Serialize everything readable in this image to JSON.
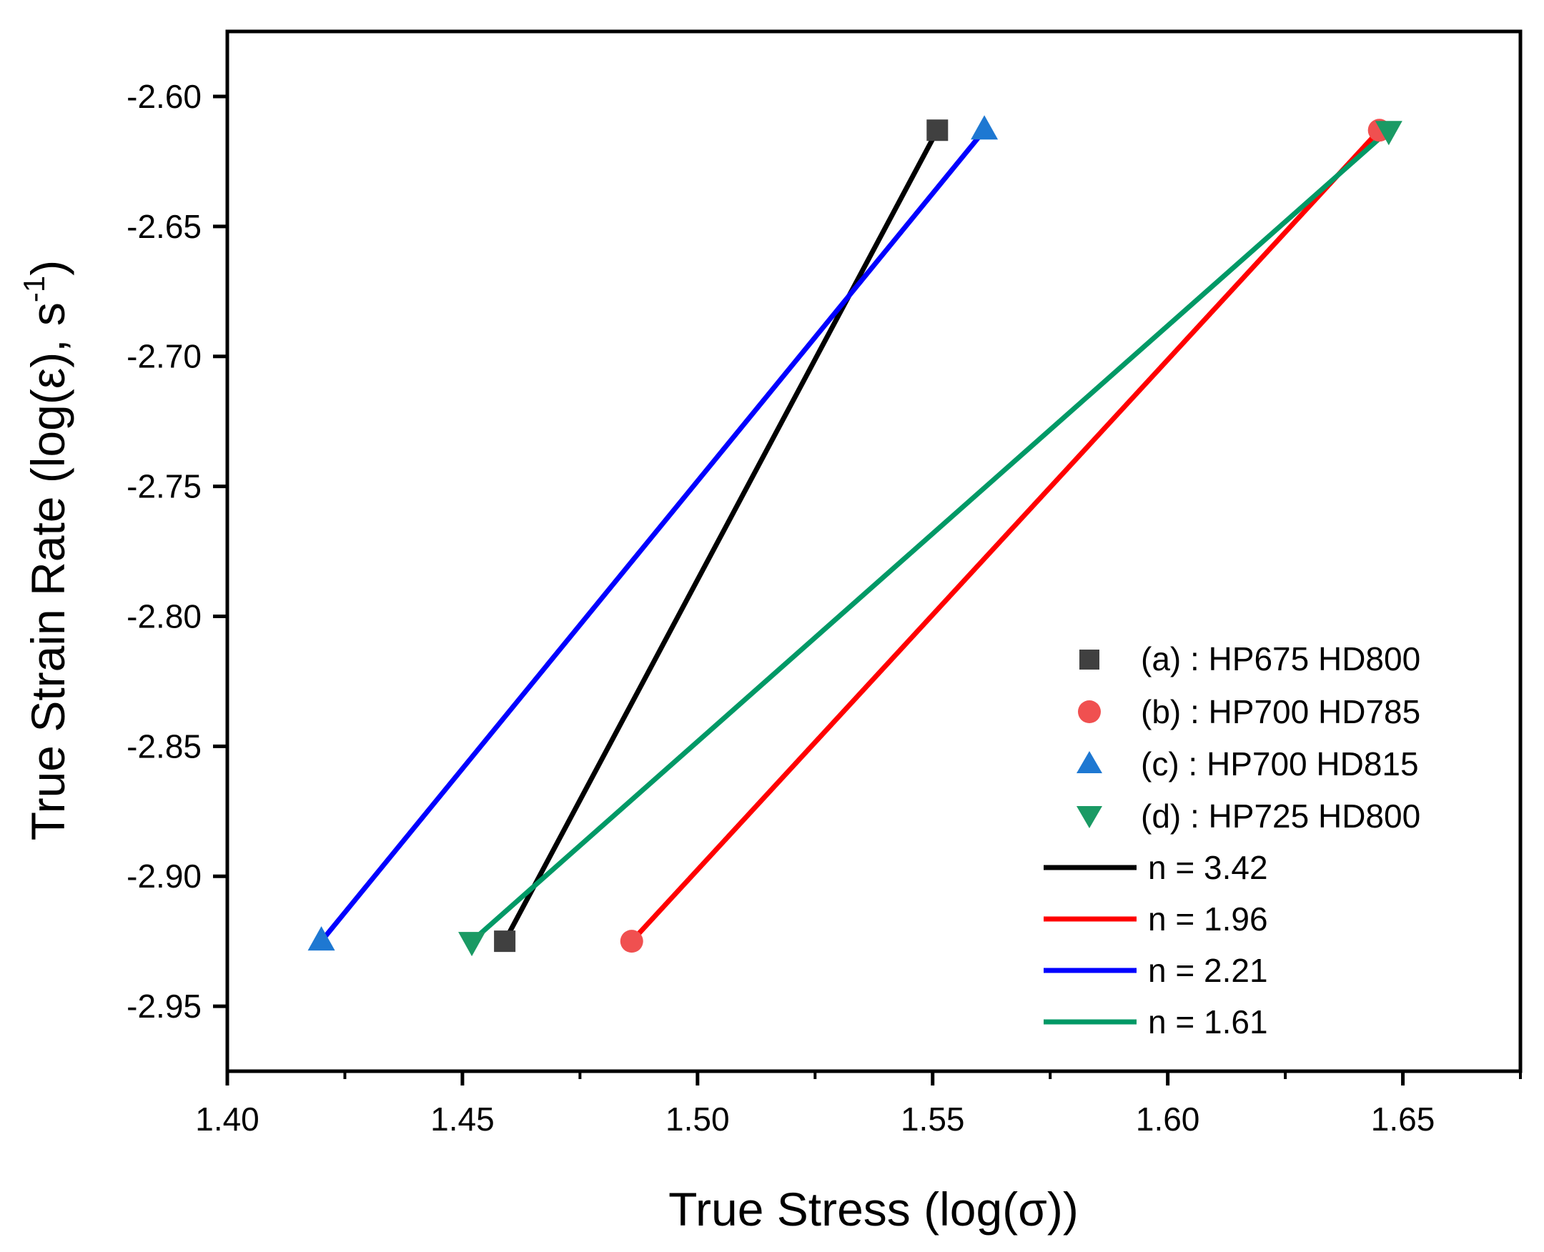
{
  "chart_data": {
    "type": "scatter",
    "xlabel": "True Stress (log(σ))",
    "ylabel": "True Strain Rate (log(ε), s⁻¹)",
    "ylabel_base": "True Strain Rate (log(ε), s",
    "ylabel_sup": "-1",
    "ylabel_end": ")",
    "xlim": [
      1.4,
      1.675
    ],
    "ylim": [
      -2.975,
      -2.575
    ],
    "xticks": [
      1.4,
      1.45,
      1.5,
      1.55,
      1.6,
      1.65
    ],
    "xtick_labels": [
      "1.40",
      "1.45",
      "1.50",
      "1.55",
      "1.60",
      "1.65"
    ],
    "yticks": [
      -2.6,
      -2.65,
      -2.7,
      -2.75,
      -2.8,
      -2.85,
      -2.9,
      -2.95
    ],
    "ytick_labels": [
      "-2.60",
      "-2.65",
      "-2.70",
      "-2.75",
      "-2.80",
      "-2.85",
      "-2.90",
      "-2.95"
    ],
    "legend_position": "right",
    "series": [
      {
        "name": "(a) : HP675 HD800",
        "marker": "square",
        "color": "#404040",
        "points": [
          {
            "x": 1.459,
            "y": -2.925
          },
          {
            "x": 1.551,
            "y": -2.613
          }
        ]
      },
      {
        "name": "(b) : HP700 HD785",
        "marker": "circle",
        "color": "#f05050",
        "points": [
          {
            "x": 1.486,
            "y": -2.925
          },
          {
            "x": 1.645,
            "y": -2.613
          }
        ]
      },
      {
        "name": "(c) : HP700 HD815",
        "marker": "triangle-up",
        "color": "#1e78d2",
        "points": [
          {
            "x": 1.42,
            "y": -2.925
          },
          {
            "x": 1.561,
            "y": -2.613
          }
        ]
      },
      {
        "name": "(d) : HP725 HD800",
        "marker": "triangle-down",
        "color": "#1a9a64",
        "points": [
          {
            "x": 1.452,
            "y": -2.925
          },
          {
            "x": 1.647,
            "y": -2.613
          }
        ]
      }
    ],
    "fits": [
      {
        "name": "n = 3.42",
        "color": "#000000",
        "from": {
          "x": 1.459,
          "y": -2.925
        },
        "to": {
          "x": 1.551,
          "y": -2.613
        }
      },
      {
        "name": "n = 1.96",
        "color": "#ff0000",
        "from": {
          "x": 1.486,
          "y": -2.925
        },
        "to": {
          "x": 1.645,
          "y": -2.613
        }
      },
      {
        "name": "n = 2.21",
        "color": "#0000ff",
        "from": {
          "x": 1.42,
          "y": -2.925
        },
        "to": {
          "x": 1.561,
          "y": -2.613
        }
      },
      {
        "name": "n = 1.61",
        "color": "#009966",
        "from": {
          "x": 1.452,
          "y": -2.925
        },
        "to": {
          "x": 1.647,
          "y": -2.613
        }
      }
    ]
  }
}
